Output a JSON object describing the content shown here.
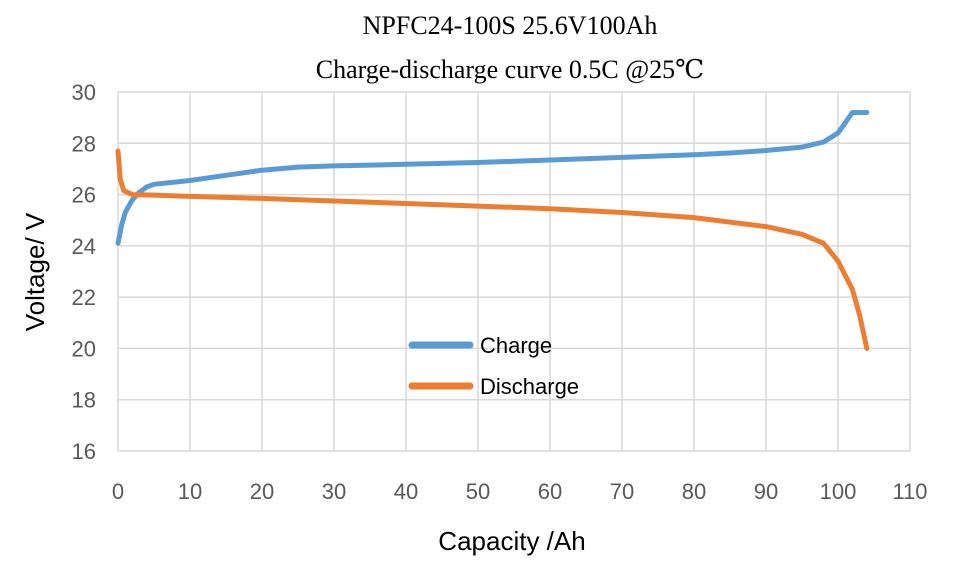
{
  "chart_data": {
    "type": "line",
    "title": "NPFC24-100S  25.6V100Ah",
    "subtitle": "Charge-discharge curve   0.5C @25℃",
    "xlabel": "Capacity /Ah",
    "ylabel": "Voltage/ V",
    "xlim": [
      0,
      110
    ],
    "ylim": [
      16,
      30
    ],
    "xticks": [
      0,
      10,
      20,
      30,
      40,
      50,
      60,
      70,
      80,
      90,
      100,
      110
    ],
    "yticks": [
      16,
      18,
      20,
      22,
      24,
      26,
      28,
      30
    ],
    "grid": true,
    "legend_position": "center",
    "series": [
      {
        "name": "Charge",
        "color": "#5b9bd5",
        "points": [
          [
            0,
            24.1
          ],
          [
            0.5,
            24.8
          ],
          [
            1,
            25.3
          ],
          [
            2,
            25.8
          ],
          [
            3,
            26.1
          ],
          [
            4,
            26.3
          ],
          [
            5,
            26.4
          ],
          [
            10,
            26.55
          ],
          [
            15,
            26.75
          ],
          [
            20,
            26.95
          ],
          [
            25,
            27.07
          ],
          [
            30,
            27.12
          ],
          [
            40,
            27.18
          ],
          [
            50,
            27.25
          ],
          [
            60,
            27.35
          ],
          [
            70,
            27.45
          ],
          [
            80,
            27.55
          ],
          [
            85,
            27.62
          ],
          [
            90,
            27.72
          ],
          [
            95,
            27.85
          ],
          [
            98,
            28.05
          ],
          [
            100,
            28.4
          ],
          [
            101,
            28.8
          ],
          [
            102,
            29.2
          ],
          [
            104,
            29.2
          ]
        ]
      },
      {
        "name": "Discharge",
        "color": "#ed7d31",
        "points": [
          [
            0,
            27.7
          ],
          [
            0.3,
            26.6
          ],
          [
            0.8,
            26.15
          ],
          [
            2,
            26.0
          ],
          [
            5,
            25.98
          ],
          [
            10,
            25.93
          ],
          [
            20,
            25.85
          ],
          [
            30,
            25.75
          ],
          [
            40,
            25.65
          ],
          [
            50,
            25.55
          ],
          [
            60,
            25.45
          ],
          [
            70,
            25.3
          ],
          [
            80,
            25.1
          ],
          [
            90,
            24.75
          ],
          [
            95,
            24.45
          ],
          [
            98,
            24.1
          ],
          [
            100,
            23.4
          ],
          [
            102,
            22.3
          ],
          [
            103,
            21.3
          ],
          [
            104,
            20.0
          ]
        ]
      }
    ]
  }
}
